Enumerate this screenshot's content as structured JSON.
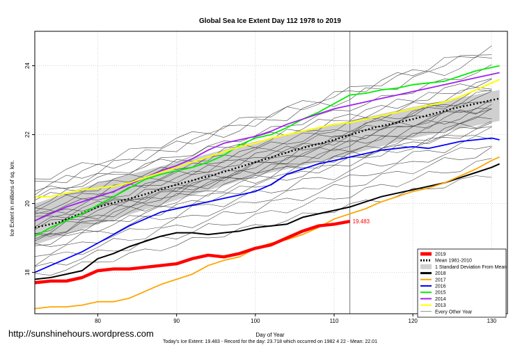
{
  "watermark": "http://sunshinehours.wordpress.com",
  "footer": "Today's Ice Extent: 19.483  - Record for the day: 23.718 which occurred on 1982 4 22  - Mean: 22.01",
  "chart_data": {
    "type": "line",
    "title": "Global Sea Ice Extent Day 112 1978 to 2019",
    "xlabel": "Day of Year",
    "ylabel": "Ice Extent in millions of sq. km.",
    "xlim": [
      72,
      132
    ],
    "ylim": [
      16.8,
      25.0
    ],
    "x_ticks": [
      80,
      90,
      100,
      110,
      120,
      130
    ],
    "y_ticks": [
      18,
      20,
      22,
      24
    ],
    "vline_day": 112,
    "last_value_label": "19.483",
    "legend_position": "bottom-right",
    "legend": [
      {
        "label": "2019",
        "kind": "line",
        "color": "#ff0000",
        "width": 5
      },
      {
        "label": "Mean 1981-2010",
        "kind": "dotted",
        "color": "#000000",
        "width": 3
      },
      {
        "label": "1 Standard Deviation From Mean",
        "kind": "box",
        "color": "#cfcfcf"
      },
      {
        "label": "2018",
        "kind": "line",
        "color": "#000000",
        "width": 3
      },
      {
        "label": "2017",
        "kind": "line",
        "color": "#ffa500",
        "width": 2
      },
      {
        "label": "2016",
        "kind": "line",
        "color": "#0000ff",
        "width": 2
      },
      {
        "label": "2015",
        "kind": "line",
        "color": "#00ee00",
        "width": 2
      },
      {
        "label": "2014",
        "kind": "line",
        "color": "#a020f0",
        "width": 2
      },
      {
        "label": "2013",
        "kind": "line",
        "color": "#ffff00",
        "width": 2
      },
      {
        "label": "Every Other Year",
        "kind": "line",
        "color": "#444444",
        "width": 0.6
      }
    ],
    "sd_band": {
      "x": [
        72,
        80,
        90,
        100,
        110,
        120,
        131
      ],
      "upper": [
        20.0,
        20.6,
        21.2,
        21.8,
        22.3,
        22.8,
        23.3
      ],
      "lower": [
        18.8,
        19.4,
        20.1,
        20.8,
        21.3,
        21.9,
        22.4
      ]
    },
    "series": [
      {
        "name": "Mean 1981-2010",
        "color": "#000000",
        "style": "dotted",
        "width": 2.5,
        "x": [
          72,
          75,
          80,
          85,
          90,
          95,
          100,
          105,
          110,
          115,
          120,
          125,
          131
        ],
        "y": [
          19.3,
          19.45,
          19.9,
          20.2,
          20.55,
          20.85,
          21.2,
          21.55,
          21.85,
          22.2,
          22.45,
          22.75,
          23.05
        ]
      },
      {
        "name": "2018",
        "color": "#000000",
        "width": 2,
        "x": [
          72,
          74,
          76,
          78,
          80,
          82,
          84,
          86,
          88,
          90,
          92,
          94,
          96,
          98,
          100,
          102,
          104,
          106,
          108,
          110,
          112,
          114,
          116,
          118,
          120,
          122,
          124,
          126,
          128,
          130,
          131
        ],
        "y": [
          17.8,
          17.85,
          17.95,
          18.05,
          18.4,
          18.55,
          18.75,
          18.9,
          19.05,
          19.15,
          19.15,
          19.1,
          19.15,
          19.2,
          19.3,
          19.35,
          19.4,
          19.6,
          19.7,
          19.8,
          19.9,
          20.05,
          20.2,
          20.3,
          20.4,
          20.5,
          20.6,
          20.75,
          20.9,
          21.05,
          21.15
        ]
      },
      {
        "name": "2017",
        "color": "#ffa500",
        "width": 1.8,
        "x": [
          72,
          74,
          76,
          78,
          80,
          82,
          84,
          86,
          88,
          90,
          92,
          94,
          96,
          98,
          100,
          102,
          104,
          106,
          108,
          110,
          112,
          114,
          116,
          118,
          120,
          122,
          124,
          126,
          128,
          130,
          131
        ],
        "y": [
          16.95,
          17.0,
          17.0,
          17.05,
          17.15,
          17.15,
          17.25,
          17.45,
          17.65,
          17.8,
          17.95,
          18.2,
          18.35,
          18.45,
          18.7,
          18.85,
          18.95,
          19.1,
          19.3,
          19.55,
          19.7,
          19.85,
          20.05,
          20.2,
          20.35,
          20.45,
          20.6,
          20.8,
          21.0,
          21.25,
          21.35
        ]
      },
      {
        "name": "2016",
        "color": "#0000ff",
        "width": 1.8,
        "x": [
          72,
          74,
          76,
          78,
          80,
          82,
          84,
          86,
          88,
          90,
          92,
          94,
          96,
          98,
          100,
          102,
          104,
          106,
          108,
          110,
          112,
          114,
          116,
          118,
          120,
          122,
          124,
          126,
          128,
          130,
          131
        ],
        "y": [
          18.0,
          18.2,
          18.4,
          18.6,
          18.85,
          19.1,
          19.35,
          19.55,
          19.75,
          19.85,
          19.95,
          20.05,
          20.15,
          20.25,
          20.35,
          20.55,
          20.85,
          21.0,
          21.15,
          21.25,
          21.35,
          21.45,
          21.55,
          21.6,
          21.65,
          21.6,
          21.7,
          21.8,
          21.85,
          21.9,
          21.85
        ]
      },
      {
        "name": "2015",
        "color": "#00ee00",
        "width": 1.8,
        "x": [
          72,
          74,
          76,
          78,
          80,
          82,
          84,
          86,
          88,
          90,
          92,
          94,
          96,
          98,
          100,
          102,
          104,
          106,
          108,
          110,
          112,
          114,
          116,
          118,
          120,
          122,
          124,
          126,
          128,
          130,
          131
        ],
        "y": [
          19.05,
          19.3,
          19.5,
          19.7,
          19.95,
          20.2,
          20.45,
          20.7,
          20.85,
          20.95,
          21.05,
          21.2,
          21.4,
          21.7,
          21.9,
          22.0,
          22.2,
          22.45,
          22.65,
          22.9,
          23.15,
          23.2,
          23.3,
          23.35,
          23.45,
          23.5,
          23.55,
          23.7,
          23.85,
          23.95,
          24.0
        ]
      },
      {
        "name": "2014",
        "color": "#a020f0",
        "width": 1.8,
        "x": [
          72,
          74,
          76,
          78,
          80,
          82,
          84,
          86,
          88,
          90,
          92,
          94,
          96,
          98,
          100,
          102,
          104,
          106,
          108,
          110,
          112,
          114,
          116,
          118,
          120,
          122,
          124,
          126,
          128,
          130,
          131
        ],
        "y": [
          19.5,
          19.7,
          19.9,
          20.05,
          20.2,
          20.35,
          20.55,
          20.75,
          20.95,
          21.1,
          21.3,
          21.55,
          21.75,
          21.85,
          21.95,
          22.1,
          22.3,
          22.45,
          22.6,
          22.75,
          22.85,
          22.95,
          23.05,
          23.15,
          23.25,
          23.35,
          23.45,
          23.55,
          23.65,
          23.75,
          23.8
        ]
      },
      {
        "name": "2013",
        "color": "#ffff00",
        "width": 2,
        "x": [
          72,
          74,
          76,
          78,
          80,
          82,
          84,
          86,
          88,
          90,
          92,
          94,
          96,
          98,
          100,
          102,
          104,
          106,
          108,
          110,
          112,
          114,
          116,
          118,
          120,
          122,
          124,
          126,
          128,
          130,
          131
        ],
        "y": [
          20.2,
          20.2,
          20.3,
          20.4,
          20.45,
          20.5,
          20.6,
          20.75,
          20.9,
          21.05,
          21.2,
          21.35,
          21.5,
          21.65,
          21.75,
          21.9,
          22.0,
          22.1,
          22.2,
          22.3,
          22.35,
          22.45,
          22.55,
          22.65,
          22.75,
          22.85,
          22.95,
          23.1,
          23.3,
          23.5,
          23.6
        ]
      },
      {
        "name": "2019",
        "color": "#ff0000",
        "width": 4.5,
        "x": [
          72,
          74,
          76,
          78,
          80,
          82,
          84,
          86,
          88,
          90,
          92,
          94,
          96,
          98,
          100,
          102,
          104,
          106,
          108,
          110,
          112
        ],
        "y": [
          17.7,
          17.75,
          17.75,
          17.85,
          18.05,
          18.1,
          18.1,
          18.15,
          18.2,
          18.25,
          18.4,
          18.5,
          18.45,
          18.55,
          18.7,
          18.8,
          19.0,
          19.2,
          19.35,
          19.4,
          19.483
        ]
      }
    ],
    "other_years": [
      {
        "y0": 19.0,
        "y1": 22.6,
        "amp": 0.12
      },
      {
        "y0": 19.2,
        "y1": 22.9,
        "amp": 0.15
      },
      {
        "y0": 19.4,
        "y1": 23.0,
        "amp": 0.1
      },
      {
        "y0": 19.6,
        "y1": 23.3,
        "amp": 0.14
      },
      {
        "y0": 19.8,
        "y1": 23.5,
        "amp": 0.12
      },
      {
        "y0": 20.0,
        "y1": 23.7,
        "amp": 0.15
      },
      {
        "y0": 20.2,
        "y1": 24.0,
        "amp": 0.1
      },
      {
        "y0": 20.5,
        "y1": 24.3,
        "amp": 0.16
      },
      {
        "y0": 20.7,
        "y1": 24.5,
        "amp": 0.12
      },
      {
        "y0": 20.4,
        "y1": 24.6,
        "amp": 0.15
      },
      {
        "y0": 18.9,
        "y1": 22.3,
        "amp": 0.12
      },
      {
        "y0": 18.7,
        "y1": 22.0,
        "amp": 0.14
      },
      {
        "y0": 18.5,
        "y1": 21.8,
        "amp": 0.1
      },
      {
        "y0": 18.3,
        "y1": 21.6,
        "amp": 0.13
      },
      {
        "y0": 18.1,
        "y1": 21.3,
        "amp": 0.12
      },
      {
        "y0": 17.9,
        "y1": 20.9,
        "amp": 0.1
      },
      {
        "y0": 19.1,
        "y1": 22.5,
        "amp": 0.16
      },
      {
        "y0": 19.3,
        "y1": 22.7,
        "amp": 0.12
      },
      {
        "y0": 19.5,
        "y1": 22.8,
        "amp": 0.14
      },
      {
        "y0": 19.7,
        "y1": 23.1,
        "amp": 0.1
      },
      {
        "y0": 19.9,
        "y1": 22.9,
        "amp": 0.15
      },
      {
        "y0": 20.1,
        "y1": 23.2,
        "amp": 0.12
      },
      {
        "y0": 19.0,
        "y1": 23.4,
        "amp": 0.14
      },
      {
        "y0": 18.8,
        "y1": 22.4,
        "amp": 0.12
      },
      {
        "y0": 19.6,
        "y1": 22.2,
        "amp": 0.1
      },
      {
        "y0": 20.3,
        "y1": 23.6,
        "amp": 0.13
      }
    ]
  }
}
